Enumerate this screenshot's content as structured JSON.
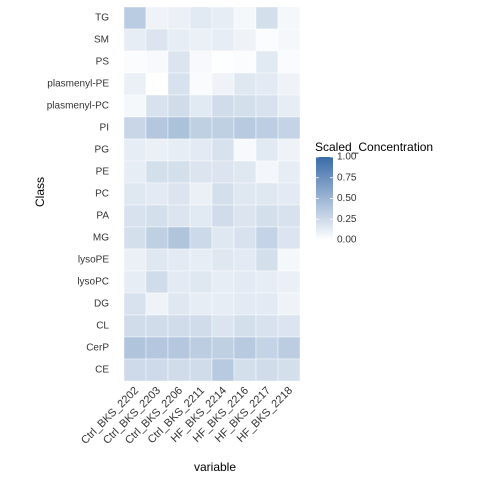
{
  "chart_data": {
    "type": "heatmap",
    "xlabel": "variable",
    "ylabel": "Class",
    "x": [
      "Ctrl_BKS_2202",
      "Ctrl_BKS_2203",
      "Ctrl_BKS_2206",
      "Ctrl_BKS_2211",
      "HF_BKS_2214",
      "HF_BKS_2216",
      "HF_BKS_2217",
      "HF_BKS_2218"
    ],
    "y": [
      "TG",
      "SM",
      "PS",
      "plasmenyl-PE",
      "plasmenyl-PC",
      "PI",
      "PG",
      "PE",
      "PC",
      "PA",
      "MG",
      "lysoPE",
      "lysoPC",
      "DG",
      "CL",
      "CerP",
      "CE"
    ],
    "values": [
      [
        0.35,
        0.08,
        0.1,
        0.15,
        0.12,
        0.05,
        0.22,
        0.05
      ],
      [
        0.12,
        0.18,
        0.12,
        0.1,
        0.12,
        0.08,
        0.02,
        0.05
      ],
      [
        0.02,
        0.04,
        0.18,
        0.04,
        0.01,
        0.02,
        0.15,
        0.03
      ],
      [
        0.1,
        0.0,
        0.2,
        0.03,
        0.08,
        0.16,
        0.14,
        0.08
      ],
      [
        0.05,
        0.2,
        0.24,
        0.15,
        0.24,
        0.22,
        0.2,
        0.12
      ],
      [
        0.28,
        0.38,
        0.42,
        0.32,
        0.32,
        0.36,
        0.33,
        0.3
      ],
      [
        0.12,
        0.1,
        0.12,
        0.14,
        0.2,
        0.04,
        0.15,
        0.08
      ],
      [
        0.12,
        0.22,
        0.22,
        0.18,
        0.18,
        0.16,
        0.06,
        0.12
      ],
      [
        0.16,
        0.14,
        0.18,
        0.1,
        0.22,
        0.16,
        0.16,
        0.14
      ],
      [
        0.2,
        0.22,
        0.18,
        0.15,
        0.24,
        0.18,
        0.22,
        0.2
      ],
      [
        0.22,
        0.32,
        0.4,
        0.26,
        0.16,
        0.2,
        0.3,
        0.18
      ],
      [
        0.1,
        0.16,
        0.14,
        0.12,
        0.16,
        0.14,
        0.22,
        0.05
      ],
      [
        0.12,
        0.24,
        0.14,
        0.16,
        0.12,
        0.14,
        0.12,
        0.1
      ],
      [
        0.2,
        0.08,
        0.16,
        0.12,
        0.12,
        0.14,
        0.14,
        0.08
      ],
      [
        0.24,
        0.24,
        0.24,
        0.24,
        0.18,
        0.22,
        0.2,
        0.18
      ],
      [
        0.4,
        0.38,
        0.38,
        0.34,
        0.32,
        0.36,
        0.3,
        0.34
      ],
      [
        0.25,
        0.25,
        0.24,
        0.24,
        0.36,
        0.22,
        0.24,
        0.22
      ]
    ],
    "colorbar": {
      "title": "Scaled_Concentration",
      "range": [
        0,
        1
      ],
      "ticks": [
        "1.00",
        "0.75",
        "0.50",
        "0.25",
        "0.00"
      ],
      "low_color": "#ffffff",
      "high_color": "#3a6ca8"
    },
    "grid": true,
    "legend": "right"
  }
}
